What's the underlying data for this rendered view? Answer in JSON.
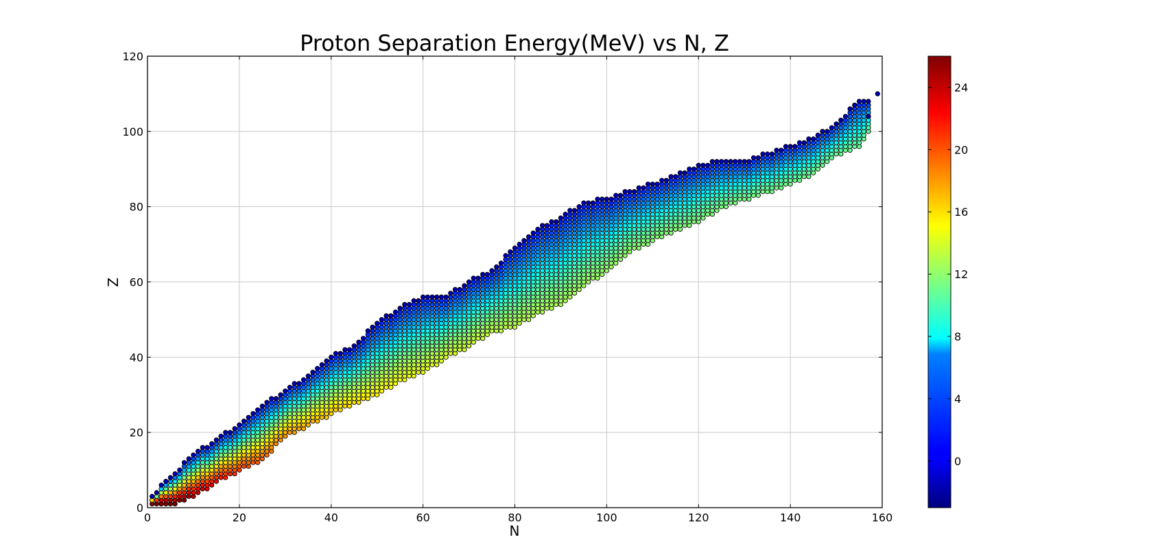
{
  "chart_data": {
    "type": "scatter",
    "title": "Proton Separation Energy(MeV) vs N, Z",
    "xlabel": "N",
    "ylabel": "Z",
    "xlim": [
      0,
      160
    ],
    "ylim": [
      0,
      120
    ],
    "xticks": [
      "0",
      "20",
      "40",
      "60",
      "80",
      "100",
      "120",
      "140",
      "160"
    ],
    "yticks": [
      "0",
      "20",
      "40",
      "60",
      "80",
      "100",
      "120"
    ],
    "grid": true,
    "colormap": "jet",
    "color_range": [
      -3,
      26
    ],
    "colorbar_ticks": [
      "0",
      "4",
      "8",
      "12",
      "16",
      "20",
      "24"
    ],
    "marker_edge_color": "#000000",
    "points_note": "one marker per nucleus (N, Z); colour = proton separation energy in MeV",
    "bands": [
      {
        "n": 1,
        "z_min": 1,
        "z_max": 3
      },
      {
        "n": 5,
        "z_min": 1,
        "z_max": 8
      },
      {
        "n": 10,
        "z_min": 3,
        "z_max": 14
      },
      {
        "n": 15,
        "z_min": 7,
        "z_max": 18
      },
      {
        "n": 20,
        "z_min": 10,
        "z_max": 22
      },
      {
        "n": 25,
        "z_min": 13,
        "z_max": 27
      },
      {
        "n": 30,
        "z_min": 19,
        "z_max": 31
      },
      {
        "n": 35,
        "z_min": 22,
        "z_max": 35
      },
      {
        "n": 40,
        "z_min": 25,
        "z_max": 40
      },
      {
        "n": 45,
        "z_min": 28,
        "z_max": 43
      },
      {
        "n": 50,
        "z_min": 30,
        "z_max": 49
      },
      {
        "n": 55,
        "z_min": 34,
        "z_max": 53
      },
      {
        "n": 60,
        "z_min": 36,
        "z_max": 56
      },
      {
        "n": 65,
        "z_min": 40,
        "z_max": 56
      },
      {
        "n": 70,
        "z_min": 43,
        "z_max": 60
      },
      {
        "n": 75,
        "z_min": 47,
        "z_max": 63
      },
      {
        "n": 80,
        "z_min": 48,
        "z_max": 69
      },
      {
        "n": 85,
        "z_min": 52,
        "z_max": 74
      },
      {
        "n": 90,
        "z_min": 54,
        "z_max": 77
      },
      {
        "n": 95,
        "z_min": 59,
        "z_max": 81
      },
      {
        "n": 100,
        "z_min": 63,
        "z_max": 82
      },
      {
        "n": 105,
        "z_min": 68,
        "z_max": 84
      },
      {
        "n": 110,
        "z_min": 71,
        "z_max": 86
      },
      {
        "n": 115,
        "z_min": 74,
        "z_max": 88
      },
      {
        "n": 120,
        "z_min": 76,
        "z_max": 91
      },
      {
        "n": 125,
        "z_min": 80,
        "z_max": 92
      },
      {
        "n": 130,
        "z_min": 82,
        "z_max": 92
      },
      {
        "n": 135,
        "z_min": 84,
        "z_max": 94
      },
      {
        "n": 140,
        "z_min": 86,
        "z_max": 96
      },
      {
        "n": 145,
        "z_min": 89,
        "z_max": 98
      },
      {
        "n": 150,
        "z_min": 94,
        "z_max": 102
      },
      {
        "n": 155,
        "z_min": 96,
        "z_max": 108
      },
      {
        "n": 157,
        "z_min": 100,
        "z_max": 108
      }
    ],
    "extra_points": [
      [
        159,
        110
      ],
      [
        157,
        104
      ]
    ]
  }
}
